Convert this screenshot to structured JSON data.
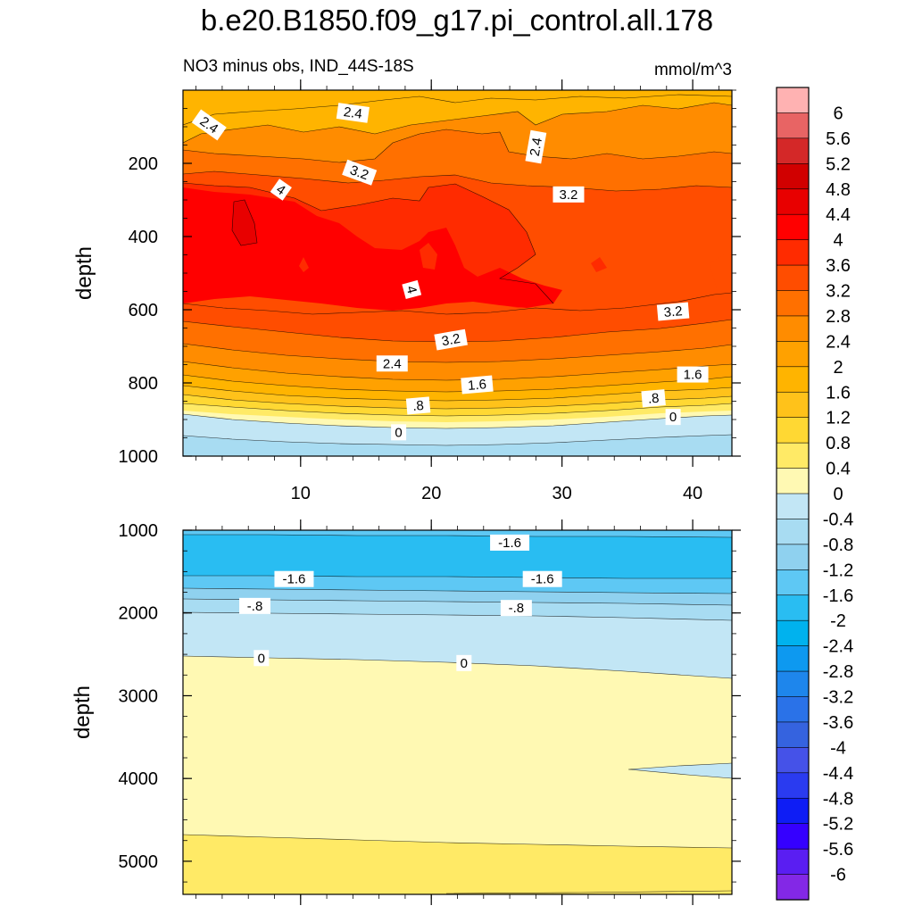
{
  "title": "b.e20.B1850.f09_g17.pi_control.all.178",
  "subtitle_left": "NO3 minus obs, IND_44S-18S",
  "subtitle_right": "mmol/m^3",
  "colorbar": {
    "labels": [
      "6",
      "5.6",
      "5.2",
      "4.8",
      "4.4",
      "4",
      "3.6",
      "3.2",
      "2.8",
      "2.4",
      "2",
      "1.6",
      "1.2",
      "0.8",
      "0.4",
      "0",
      "-0.4",
      "-0.8",
      "-1.2",
      "-1.6",
      "-2",
      "-2.4",
      "-2.8",
      "-3.2",
      "-3.6",
      "-4",
      "-4.4",
      "-4.8",
      "-5.2",
      "-5.6",
      "-6"
    ],
    "colors": [
      "#ffb2b2",
      "#e86464",
      "#d42828",
      "#d10000",
      "#e80000",
      "#ff0000",
      "#ff2b00",
      "#ff4d00",
      "#ff7000",
      "#ff8c00",
      "#ffa100",
      "#ffb400",
      "#ffc21a",
      "#ffd833",
      "#ffea66",
      "#fff9b3",
      "#c2e6f5",
      "#a8dcf2",
      "#8fd1ef",
      "#5ec8f4",
      "#29bdf2",
      "#00b2ee",
      "#0d99f0",
      "#1e86ec",
      "#2a72e8",
      "#3563df",
      "#4552e8",
      "#2a3bf0",
      "#0e1df5",
      "#3500ff",
      "#5a1ef2",
      "#8328e6"
    ]
  },
  "chart_data": [
    {
      "type": "contour",
      "panel": "upper",
      "ylabel": "depth",
      "xlabel": "",
      "xlim": [
        1,
        43
      ],
      "ylim": [
        1000,
        0
      ],
      "xticks": [
        10,
        20,
        30,
        40
      ],
      "xtick_labels": [
        "10",
        "20",
        "30",
        "40"
      ],
      "yticks": [
        200,
        400,
        600,
        800,
        1000
      ],
      "ytick_labels": [
        "200",
        "400",
        "600",
        "800",
        "1000"
      ],
      "contour_labels": [
        {
          "text": "2.4",
          "x": 3.0,
          "y": 95,
          "angle": 35
        },
        {
          "text": "2.4",
          "x": 14.0,
          "y": 62,
          "angle": 8
        },
        {
          "text": "2.4",
          "x": 28.0,
          "y": 155,
          "angle": -80
        },
        {
          "text": "4",
          "x": 8.5,
          "y": 272,
          "angle": 35
        },
        {
          "text": "3.2",
          "x": 14.5,
          "y": 225,
          "angle": 20
        },
        {
          "text": "3.2",
          "x": 30.5,
          "y": 285,
          "angle": 0
        },
        {
          "text": "4",
          "x": 18.5,
          "y": 545,
          "angle": 75
        },
        {
          "text": "3.2",
          "x": 38.5,
          "y": 605,
          "angle": -5
        },
        {
          "text": "3.2",
          "x": 21.5,
          "y": 682,
          "angle": -10
        },
        {
          "text": "2.4",
          "x": 17.0,
          "y": 747,
          "angle": 0
        },
        {
          "text": "1.6",
          "x": 23.5,
          "y": 805,
          "angle": -5
        },
        {
          "text": "1.6",
          "x": 40.0,
          "y": 777,
          "angle": 0
        },
        {
          "text": ".8",
          "x": 19.0,
          "y": 862,
          "angle": -5
        },
        {
          "text": ".8",
          "x": 37.0,
          "y": 842,
          "angle": -5
        },
        {
          "text": "0",
          "x": 17.5,
          "y": 935,
          "angle": 0
        },
        {
          "text": "0",
          "x": 38.5,
          "y": 893,
          "angle": 0
        }
      ]
    },
    {
      "type": "contour",
      "panel": "lower",
      "ylabel": "depth",
      "xlabel": "",
      "xlim": [
        1,
        43
      ],
      "ylim": [
        5400,
        1000
      ],
      "yticks": [
        1000,
        2000,
        3000,
        4000,
        5000
      ],
      "ytick_labels": [
        "1000",
        "2000",
        "3000",
        "4000",
        "5000"
      ],
      "contour_labels": [
        {
          "text": "-1.6",
          "x": 26.0,
          "y": 1150,
          "angle": 0
        },
        {
          "text": "-1.6",
          "x": 9.5,
          "y": 1590,
          "angle": 0
        },
        {
          "text": "-1.6",
          "x": 28.5,
          "y": 1590,
          "angle": 0
        },
        {
          "text": "-.8",
          "x": 6.5,
          "y": 1915,
          "angle": 0
        },
        {
          "text": "-.8",
          "x": 26.5,
          "y": 1940,
          "angle": 0
        },
        {
          "text": "0",
          "x": 7.0,
          "y": 2545,
          "angle": 0
        },
        {
          "text": "0",
          "x": 22.5,
          "y": 2605,
          "angle": 0
        }
      ]
    }
  ]
}
